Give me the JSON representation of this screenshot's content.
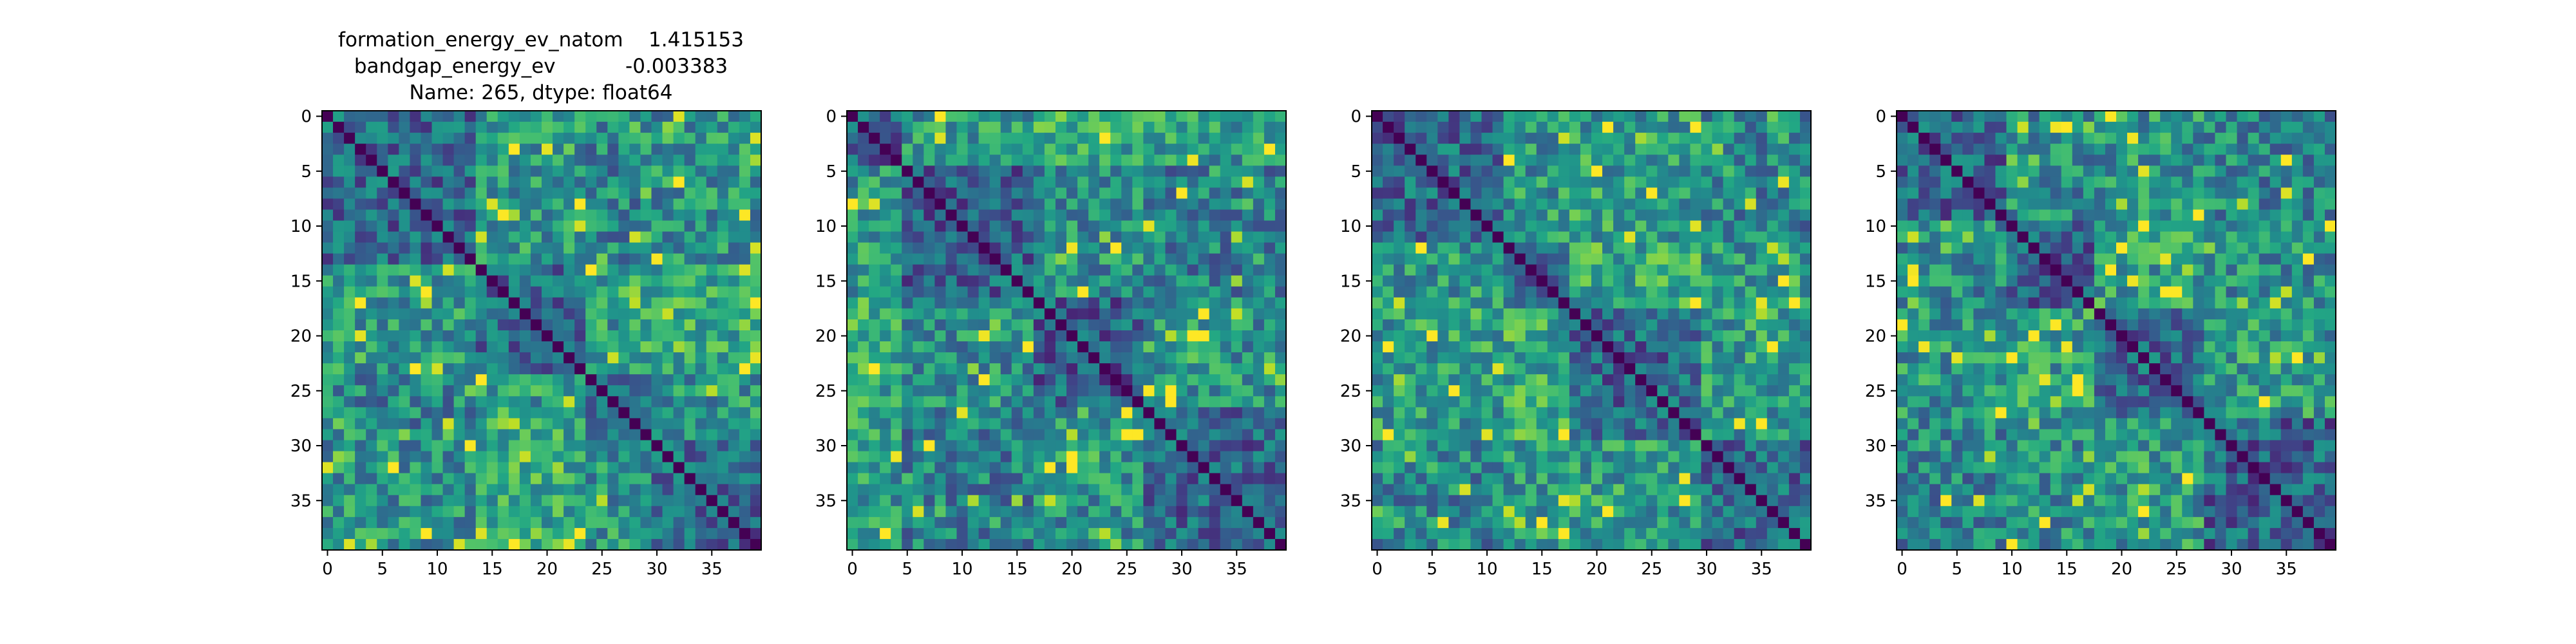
{
  "figure_title": {
    "line1": "formation_energy_ev_natom    1.415153",
    "line2": "bandgap_energy_ev           -0.003383",
    "line3": "Name: 265, dtype: float64"
  },
  "chart_data": [
    {
      "type": "heatmap",
      "title": "formation_energy_ev_natom    1.415153\nbandgap_energy_ev           -0.003383\nName: 265, dtype: float64",
      "colormap": "viridis",
      "size": 40,
      "diagonal": "zero distance (dark purple)",
      "x_ticks": [
        0,
        5,
        10,
        15,
        20,
        25,
        30,
        35
      ],
      "y_ticks": [
        0,
        5,
        10,
        15,
        20,
        25,
        30,
        35
      ],
      "xlim": [
        -0.5,
        39.5
      ],
      "ylim": [
        39.5,
        -0.5
      ],
      "block_boundaries": [
        14,
        24,
        30
      ],
      "group_levels": [
        0.3,
        0.65,
        0.35,
        0.55
      ],
      "background_level": 0.45
    },
    {
      "type": "heatmap",
      "colormap": "viridis",
      "size": 40,
      "diagonal": "zero distance (dark purple)",
      "x_ticks": [
        0,
        5,
        10,
        15,
        20,
        25,
        30,
        35
      ],
      "y_ticks": [
        0,
        5,
        10,
        15,
        20,
        25,
        30,
        35
      ],
      "xlim": [
        -0.5,
        39.5
      ],
      "ylim": [
        39.5,
        -0.5
      ],
      "block_boundaries": [
        5,
        17,
        27
      ],
      "group_levels": [
        0.75,
        0.3,
        0.6,
        0.35
      ],
      "background_level": 0.4
    },
    {
      "type": "heatmap",
      "colormap": "viridis",
      "size": 40,
      "diagonal": "zero distance (dark purple)",
      "x_ticks": [
        0,
        5,
        10,
        15,
        20,
        25,
        30,
        35
      ],
      "y_ticks": [
        0,
        5,
        10,
        15,
        20,
        25,
        30,
        35
      ],
      "xlim": [
        -0.5,
        39.5
      ],
      "ylim": [
        39.5,
        -0.5
      ],
      "block_boundaries": [
        12,
        18,
        30
      ],
      "group_levels": [
        0.35,
        0.55,
        0.7,
        0.3
      ],
      "background_level": 0.45
    },
    {
      "type": "heatmap",
      "colormap": "viridis",
      "size": 40,
      "diagonal": "zero distance (dark purple)",
      "x_ticks": [
        0,
        5,
        10,
        15,
        20,
        25,
        30,
        35
      ],
      "y_ticks": [
        0,
        5,
        10,
        15,
        20,
        25,
        30,
        35
      ],
      "xlim": [
        -0.5,
        39.5
      ],
      "ylim": [
        39.5,
        -0.5
      ],
      "block_boundaries": [
        10,
        18,
        28
      ],
      "group_levels": [
        0.35,
        0.5,
        0.65,
        0.4
      ],
      "background_level": 0.4
    }
  ]
}
